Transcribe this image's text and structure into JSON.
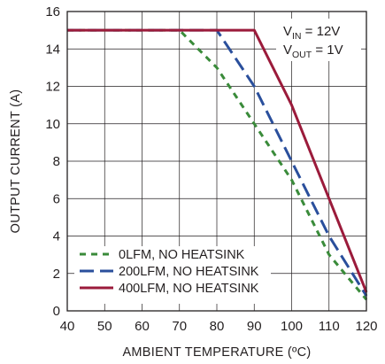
{
  "chart_data": {
    "type": "line",
    "title": "",
    "xlabel": "AMBIENT TEMPERATURE (ºC)",
    "ylabel": "OUTPUT CURRENT (A)",
    "xlim": [
      40,
      120
    ],
    "ylim": [
      0,
      16
    ],
    "x_ticks": [
      40,
      50,
      60,
      70,
      80,
      90,
      100,
      110,
      120
    ],
    "y_ticks": [
      0,
      2,
      4,
      6,
      8,
      10,
      12,
      14,
      16
    ],
    "grid": true,
    "legend_position": "bottom-left",
    "conditions": [
      {
        "main": "V",
        "sub": "IN",
        "rest": " = 12V"
      },
      {
        "main": "V",
        "sub": "OUT",
        "rest": " = 1V"
      }
    ],
    "series": [
      {
        "name": "0LFM, NO HEATSINK",
        "color": "#3a8b3a",
        "dash": "short",
        "points": [
          [
            40,
            15
          ],
          [
            70,
            15
          ],
          [
            80,
            13
          ],
          [
            90,
            10
          ],
          [
            100,
            7
          ],
          [
            110,
            3
          ],
          [
            120,
            0.6
          ]
        ]
      },
      {
        "name": "200LFM, NO HEATSINK",
        "color": "#2a4f9c",
        "dash": "long",
        "points": [
          [
            40,
            15
          ],
          [
            80,
            15
          ],
          [
            90,
            12
          ],
          [
            100,
            8
          ],
          [
            110,
            4
          ],
          [
            120,
            0.8
          ]
        ]
      },
      {
        "name": "400LFM, NO HEATSINK",
        "color": "#9b1b3b",
        "dash": "solid",
        "points": [
          [
            40,
            15
          ],
          [
            90,
            15
          ],
          [
            100,
            11
          ],
          [
            110,
            6
          ],
          [
            120,
            1
          ]
        ]
      }
    ]
  }
}
